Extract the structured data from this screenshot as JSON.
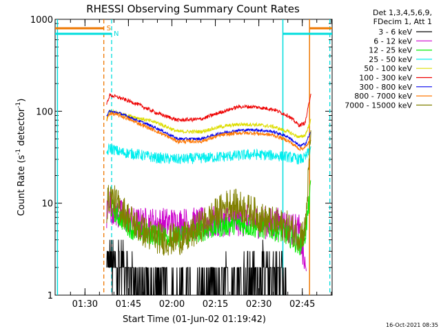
{
  "chart_data": {
    "type": "line",
    "title": "RHESSI Observing Summary Count Rates",
    "xlabel": "Start Time (01-Jun-02 01:19:42)",
    "ylabel_main": "Count Rate (s",
    "ylabel_sup1": "-1",
    "ylabel_mid": " detector",
    "ylabel_sup2": "-1",
    "ylabel_end": ")",
    "yscale": "log",
    "ylim": [
      1,
      1000
    ],
    "xlim_min": [
      19.7,
      89.5
    ],
    "y_ticks": [
      {
        "v": 1,
        "label": "1"
      },
      {
        "v": 10,
        "label": "10"
      },
      {
        "v": 100,
        "label": "100"
      },
      {
        "v": 1000,
        "label": "1000"
      }
    ],
    "x_ticks": [
      {
        "t": 30,
        "label": "01:30"
      },
      {
        "t": 45,
        "label": "01:45"
      },
      {
        "t": 60,
        "label": "02:00"
      },
      {
        "t": 75,
        "label": "02:15"
      },
      {
        "t": 90,
        "label": "02:30"
      },
      {
        "t": 105,
        "label": "02:45"
      }
    ],
    "legend_header": [
      "Det 1,3,4,5,6,9,",
      "FDecim 1, Att 1"
    ],
    "series": [
      {
        "name": "3 - 6 keV",
        "color": "#000000",
        "values": [
          [
            37.5,
            2.5
          ],
          [
            41,
            2.6
          ],
          [
            45,
            2.0
          ],
          [
            50,
            1.5
          ],
          [
            55,
            1.3
          ],
          [
            70,
            1.3
          ],
          [
            78,
            1.5
          ],
          [
            85,
            1.8
          ],
          [
            92,
            2.0
          ],
          [
            98,
            1.9
          ],
          [
            99.5,
            1.0
          ]
        ]
      },
      {
        "name": "6 - 12 keV",
        "color": "#cc00cc",
        "values": [
          [
            37.5,
            7
          ],
          [
            38,
            12
          ],
          [
            39,
            9
          ],
          [
            42,
            7.5
          ],
          [
            47,
            6
          ],
          [
            55,
            6
          ],
          [
            65,
            6
          ],
          [
            72,
            6
          ],
          [
            78,
            6.5
          ],
          [
            85,
            6.5
          ],
          [
            95,
            6
          ],
          [
            98,
            6
          ],
          [
            100,
            5.5
          ],
          [
            104,
            5
          ],
          [
            106.5,
            1.5
          ]
        ]
      },
      {
        "name": "12 - 25 keV",
        "color": "#00ee00",
        "values": [
          [
            39,
            9
          ],
          [
            42,
            7
          ],
          [
            47,
            5
          ],
          [
            55,
            4.5
          ],
          [
            62,
            4.3
          ],
          [
            70,
            5
          ],
          [
            76,
            5.5
          ],
          [
            82,
            6
          ],
          [
            88,
            5.5
          ],
          [
            95,
            5.2
          ],
          [
            100,
            4.5
          ],
          [
            104,
            3.5
          ],
          [
            106,
            4.5
          ],
          [
            108,
            15
          ]
        ]
      },
      {
        "name": "25 - 50 keV",
        "color": "#00eeee",
        "values": [
          [
            37.5,
            35
          ],
          [
            38.5,
            40
          ],
          [
            42,
            36
          ],
          [
            48,
            34
          ],
          [
            55,
            31
          ],
          [
            62,
            30
          ],
          [
            70,
            31
          ],
          [
            77,
            32
          ],
          [
            83,
            33
          ],
          [
            88,
            34
          ],
          [
            95,
            33
          ],
          [
            100,
            32
          ],
          [
            104,
            30
          ],
          [
            106,
            31
          ],
          [
            108,
            40
          ]
        ]
      },
      {
        "name": "50 - 100 keV",
        "color": "#dddd00",
        "values": [
          [
            37.5,
            80
          ],
          [
            38.5,
            100
          ],
          [
            42,
            95
          ],
          [
            48,
            85
          ],
          [
            55,
            75
          ],
          [
            62,
            60
          ],
          [
            70,
            60
          ],
          [
            77,
            68
          ],
          [
            83,
            72
          ],
          [
            88,
            72
          ],
          [
            95,
            68
          ],
          [
            100,
            60
          ],
          [
            104,
            52
          ],
          [
            106,
            55
          ],
          [
            108,
            80
          ]
        ]
      },
      {
        "name": "100 - 300 keV",
        "color": "#ee0000",
        "values": [
          [
            37.5,
            120
          ],
          [
            38.5,
            150
          ],
          [
            42,
            140
          ],
          [
            48,
            120
          ],
          [
            55,
            95
          ],
          [
            62,
            80
          ],
          [
            70,
            82
          ],
          [
            77,
            98
          ],
          [
            83,
            112
          ],
          [
            88,
            112
          ],
          [
            95,
            105
          ],
          [
            100,
            90
          ],
          [
            104,
            70
          ],
          [
            106,
            75
          ],
          [
            107.5,
            130
          ],
          [
            108,
            165
          ]
        ]
      },
      {
        "name": "300 - 800 keV",
        "color": "#0000ee",
        "values": [
          [
            37.5,
            90
          ],
          [
            38.5,
            100
          ],
          [
            42,
            95
          ],
          [
            48,
            80
          ],
          [
            55,
            65
          ],
          [
            62,
            50
          ],
          [
            70,
            50
          ],
          [
            77,
            58
          ],
          [
            83,
            62
          ],
          [
            88,
            63
          ],
          [
            95,
            60
          ],
          [
            100,
            53
          ],
          [
            104,
            42
          ],
          [
            106,
            44
          ],
          [
            108,
            60
          ]
        ]
      },
      {
        "name": "800 - 7000 keV",
        "color": "#ff7700",
        "values": [
          [
            37.5,
            80
          ],
          [
            38.5,
            95
          ],
          [
            42,
            90
          ],
          [
            48,
            75
          ],
          [
            55,
            60
          ],
          [
            62,
            47
          ],
          [
            70,
            47
          ],
          [
            77,
            55
          ],
          [
            83,
            58
          ],
          [
            88,
            58
          ],
          [
            95,
            55
          ],
          [
            100,
            48
          ],
          [
            104,
            39
          ],
          [
            106,
            40
          ],
          [
            108,
            50
          ]
        ]
      },
      {
        "name": "7000 - 15000 keV",
        "color": "#808000",
        "values": [
          [
            37.5,
            9
          ],
          [
            38.5,
            12
          ],
          [
            42,
            9
          ],
          [
            47,
            6
          ],
          [
            52,
            4.5
          ],
          [
            58,
            4
          ],
          [
            65,
            4.2
          ],
          [
            71,
            6
          ],
          [
            76,
            8
          ],
          [
            80,
            10
          ],
          [
            84,
            9
          ],
          [
            88,
            8
          ],
          [
            92,
            6.5
          ],
          [
            96,
            6
          ],
          [
            100,
            5.5
          ],
          [
            104,
            4.5
          ],
          [
            106,
            5
          ],
          [
            107.5,
            30
          ],
          [
            108,
            70
          ]
        ]
      }
    ],
    "flags": [
      {
        "label": "S",
        "color": "#ee7700"
      },
      {
        "label": "N",
        "color": "#00dddd"
      }
    ],
    "footer_date": "16-Oct-2021 08:35"
  }
}
